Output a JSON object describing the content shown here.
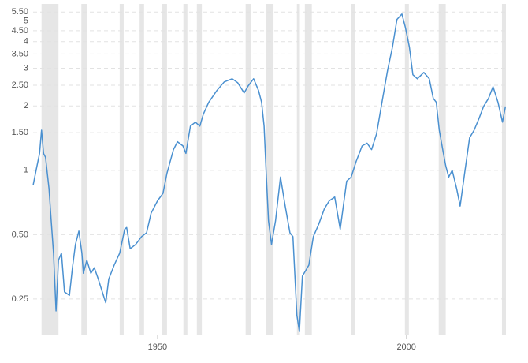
{
  "chart_data": {
    "type": "line",
    "log_scale": true,
    "grid": true,
    "xlim": [
      1925,
      2020
    ],
    "xticks": [
      1950,
      2000
    ],
    "ylim": [
      0.169,
      6.0
    ],
    "yticks": [
      0.25,
      {
        "value": 0.5,
        "label": "0.50"
      },
      1,
      {
        "value": 1.5,
        "label": "1.50"
      },
      2,
      {
        "value": 2.5,
        "label": "2.50"
      },
      3,
      {
        "value": 3.5,
        "label": "3.50"
      },
      4,
      {
        "value": 4.5,
        "label": "4.50"
      },
      5,
      {
        "value": 5.5,
        "label": "5.50"
      }
    ],
    "shaded_color": "#e6e6e6",
    "shaded_periods": [
      [
        1926.7,
        1930.1
      ],
      [
        1934.7,
        1935.8
      ],
      [
        1942.4,
        1943.2
      ],
      [
        1946.4,
        1947.3
      ],
      [
        1950.9,
        1951.9
      ],
      [
        1955.2,
        1956.0
      ],
      [
        1957.9,
        1958.9
      ],
      [
        1967.7,
        1968.7
      ],
      [
        1971.8,
        1973.3
      ],
      [
        1978.0,
        1978.6
      ],
      [
        1979.6,
        1981.0
      ],
      [
        1988.9,
        1989.6
      ],
      [
        1999.7,
        2000.5
      ],
      [
        2006.5,
        2007.9
      ],
      [
        2019.2,
        2020
      ]
    ],
    "x": [
      1925.0,
      1925.6,
      1926.3,
      1926.7,
      1927.1,
      1927.5,
      1928.2,
      1928.6,
      1929.1,
      1929.6,
      1930.1,
      1930.7,
      1931.3,
      1932.3,
      1932.9,
      1933.5,
      1934.2,
      1934.8,
      1935.1,
      1935.8,
      1936.6,
      1937.3,
      1938.1,
      1938.9,
      1939.6,
      1940.2,
      1941.3,
      1942.4,
      1943.4,
      1943.8,
      1944.5,
      1945.6,
      1946.8,
      1947.8,
      1948.7,
      1950.0,
      1951.1,
      1951.9,
      1953.2,
      1954.0,
      1955.1,
      1955.7,
      1956.6,
      1957.6,
      1958.5,
      1959.2,
      1960.3,
      1961.9,
      1963.4,
      1965.0,
      1966.1,
      1967.4,
      1968.2,
      1969.3,
      1970.3,
      1970.9,
      1971.4,
      1971.8,
      1972.3,
      1972.9,
      1973.7,
      1974.7,
      1975.6,
      1976.6,
      1977.2,
      1978.0,
      1978.5,
      1979.1,
      1980.4,
      1981.3,
      1982.4,
      1983.5,
      1984.5,
      1985.6,
      1986.7,
      1988.0,
      1988.9,
      1989.9,
      1991.1,
      1992.1,
      1993.0,
      1994.0,
      1995.1,
      1996.2,
      1997.2,
      1998.1,
      1999.1,
      1999.8,
      2000.6,
      2001.3,
      2002.2,
      2003.5,
      2004.6,
      2005.4,
      2006.0,
      2006.6,
      2007.3,
      2007.9,
      2008.5,
      2009.2,
      2010.1,
      2010.8,
      2011.7,
      2012.7,
      2013.6,
      2014.6,
      2015.5,
      2016.5,
      2017.4,
      2018.4,
      2019.3,
      2019.9
    ],
    "series": [
      {
        "color": "#4a90d0",
        "values": [
          0.85,
          1.0,
          1.2,
          1.54,
          1.2,
          1.15,
          0.82,
          0.6,
          0.41,
          0.22,
          0.38,
          0.41,
          0.27,
          0.26,
          0.35,
          0.45,
          0.52,
          0.41,
          0.33,
          0.38,
          0.33,
          0.35,
          0.31,
          0.27,
          0.24,
          0.31,
          0.36,
          0.41,
          0.53,
          0.54,
          0.43,
          0.45,
          0.49,
          0.51,
          0.63,
          0.72,
          0.78,
          0.97,
          1.25,
          1.36,
          1.3,
          1.2,
          1.61,
          1.68,
          1.61,
          1.83,
          2.08,
          2.36,
          2.59,
          2.68,
          2.57,
          2.3,
          2.48,
          2.68,
          2.36,
          2.08,
          1.61,
          1.0,
          0.58,
          0.45,
          0.58,
          0.93,
          0.69,
          0.51,
          0.49,
          0.21,
          0.176,
          0.32,
          0.36,
          0.49,
          0.56,
          0.66,
          0.72,
          0.75,
          0.53,
          0.89,
          0.93,
          1.1,
          1.3,
          1.34,
          1.25,
          1.48,
          2.08,
          2.92,
          3.77,
          5.08,
          5.38,
          4.66,
          3.77,
          2.8,
          2.68,
          2.87,
          2.68,
          2.17,
          2.08,
          1.54,
          1.25,
          1.05,
          0.93,
          1.0,
          0.82,
          0.68,
          0.97,
          1.42,
          1.54,
          1.75,
          1.99,
          2.17,
          2.46,
          2.08,
          1.68,
          1.99
        ]
      }
    ]
  }
}
